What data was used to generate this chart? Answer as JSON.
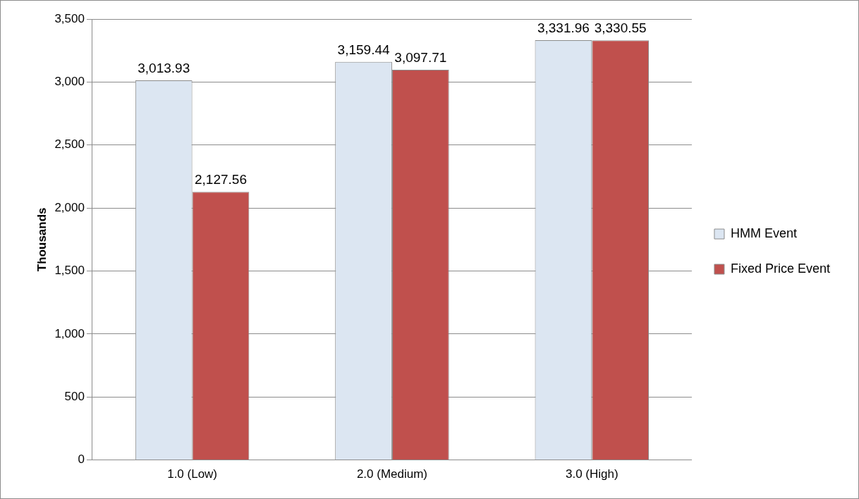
{
  "chart_data": {
    "type": "bar",
    "ylabel": "Thousands",
    "categories": [
      "1.0 (Low)",
      "2.0 (Medium)",
      "3.0 (High)"
    ],
    "series": [
      {
        "name": "HMM Event",
        "color": "#dce6f2",
        "values": [
          3013.93,
          3159.44,
          3331.96
        ],
        "value_labels": [
          "3,013.93",
          "3,159.44",
          "3,331.96"
        ]
      },
      {
        "name": "Fixed Price Event",
        "color": "#c0504d",
        "values": [
          2127.56,
          3097.71,
          3330.55
        ],
        "value_labels": [
          "2,127.56",
          "3,097.71",
          "3,330.55"
        ]
      }
    ],
    "ylim": [
      0,
      3500
    ],
    "yticks": [
      0,
      500,
      {
        "value": 1000,
        "label": "1,000"
      },
      {
        "value": 1500,
        "label": "1,500"
      },
      {
        "value": 2000,
        "label": "2,000"
      },
      {
        "value": 2500,
        "label": "2,500"
      },
      {
        "value": 3000,
        "label": "3,000"
      },
      {
        "value": 3500,
        "label": "3,500"
      }
    ],
    "grid": "y",
    "legend": "right"
  }
}
